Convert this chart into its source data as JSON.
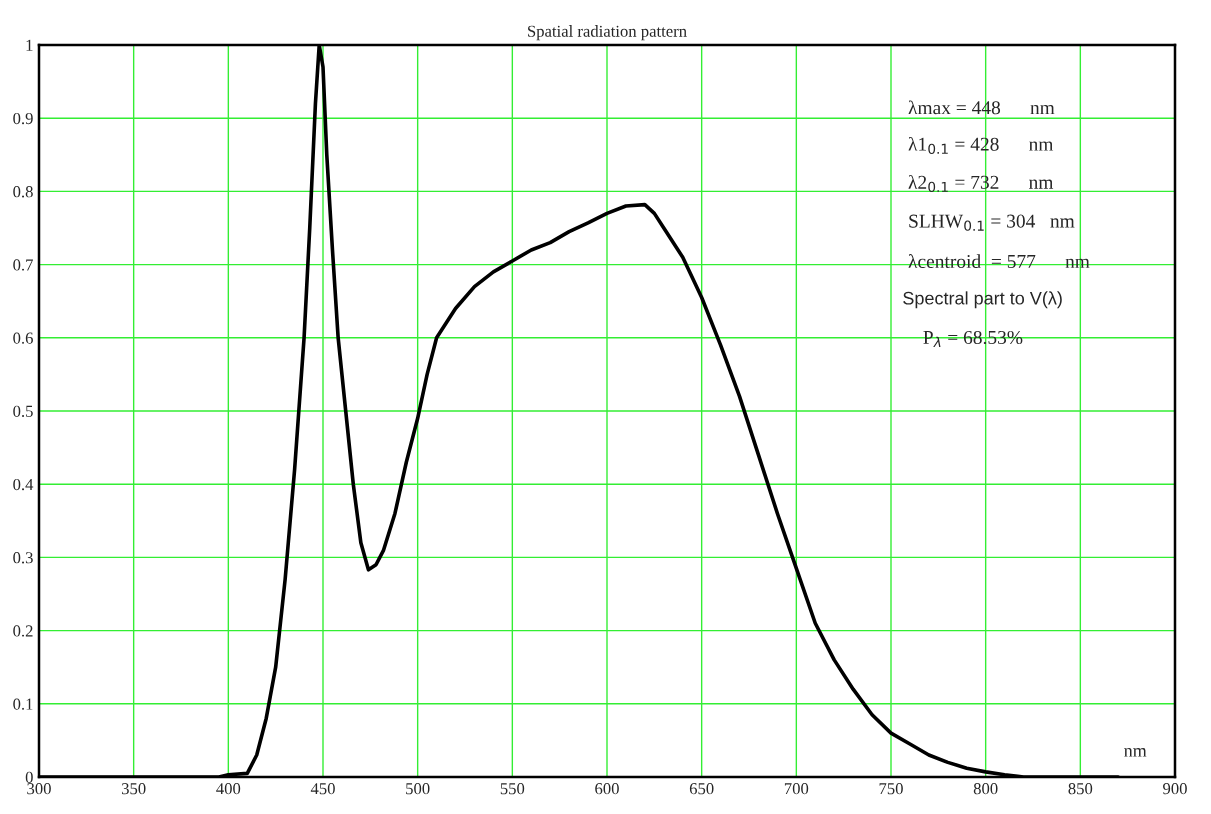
{
  "chart_data": {
    "type": "line",
    "title": "Spatial radiation pattern",
    "xlabel": "nm",
    "annotations": [
      "λmax = 448      nm",
      "λ1$_{0.1}$ = 428      nm",
      "λ2$_{0.1}$ = 732      nm",
      "SLHW$_{0.1}$ = 304   nm",
      "λcentroid  = 577      nm",
      "Spectral part to V(λ)",
      "P$_{λ}$ = 68.53%"
    ],
    "series": [
      {
        "color": "#000000",
        "x": [
          300,
          395,
          400,
          410,
          415,
          420,
          425,
          430,
          435,
          440,
          443,
          446,
          448,
          450,
          452,
          455,
          458,
          462,
          466,
          470,
          474,
          478,
          482,
          488,
          494,
          500,
          505,
          510,
          520,
          530,
          540,
          550,
          560,
          570,
          580,
          590,
          600,
          610,
          620,
          625,
          630,
          640,
          650,
          660,
          670,
          680,
          690,
          700,
          710,
          720,
          730,
          740,
          750,
          760,
          770,
          780,
          790,
          800,
          810,
          820,
          870
        ],
        "values": [
          0,
          0,
          0.003,
          0.005,
          0.03,
          0.08,
          0.15,
          0.27,
          0.42,
          0.6,
          0.75,
          0.92,
          1.0,
          0.97,
          0.85,
          0.72,
          0.6,
          0.5,
          0.4,
          0.32,
          0.283,
          0.29,
          0.31,
          0.36,
          0.43,
          0.49,
          0.55,
          0.6,
          0.64,
          0.67,
          0.69,
          0.705,
          0.72,
          0.73,
          0.745,
          0.757,
          0.77,
          0.78,
          0.782,
          0.77,
          0.75,
          0.71,
          0.655,
          0.59,
          0.52,
          0.44,
          0.36,
          0.285,
          0.21,
          0.16,
          0.12,
          0.085,
          0.06,
          0.045,
          0.03,
          0.02,
          0.012,
          0.007,
          0.003,
          0,
          0
        ]
      }
    ],
    "xlim": [
      300,
      900
    ],
    "ylim": [
      0,
      1
    ],
    "xticks": [
      300,
      350,
      400,
      450,
      500,
      550,
      600,
      650,
      700,
      750,
      800,
      850,
      900
    ],
    "yticks": [
      0,
      0.1,
      0.2,
      0.3,
      0.4,
      0.5,
      0.6,
      0.7,
      0.8,
      0.9,
      1
    ],
    "grid": true,
    "legend": false,
    "line_style": "solid",
    "marker": "none"
  }
}
